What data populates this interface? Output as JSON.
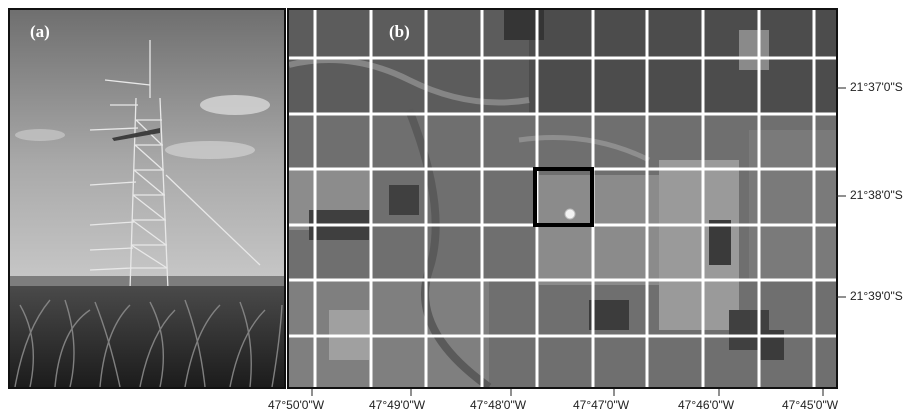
{
  "panels": {
    "a": {
      "label": "(a)"
    },
    "b": {
      "label": "(b)"
    }
  },
  "latitude_labels": [
    "21°37'0\"S",
    "21°38'0\"S",
    "21°39'0\"S"
  ],
  "longitude_labels": [
    "47°50'0\"W",
    "47°49'0\"W",
    "47°48'0\"W",
    "47°47'0\"W",
    "47°46'0\"W",
    "47°45'0\"W"
  ]
}
